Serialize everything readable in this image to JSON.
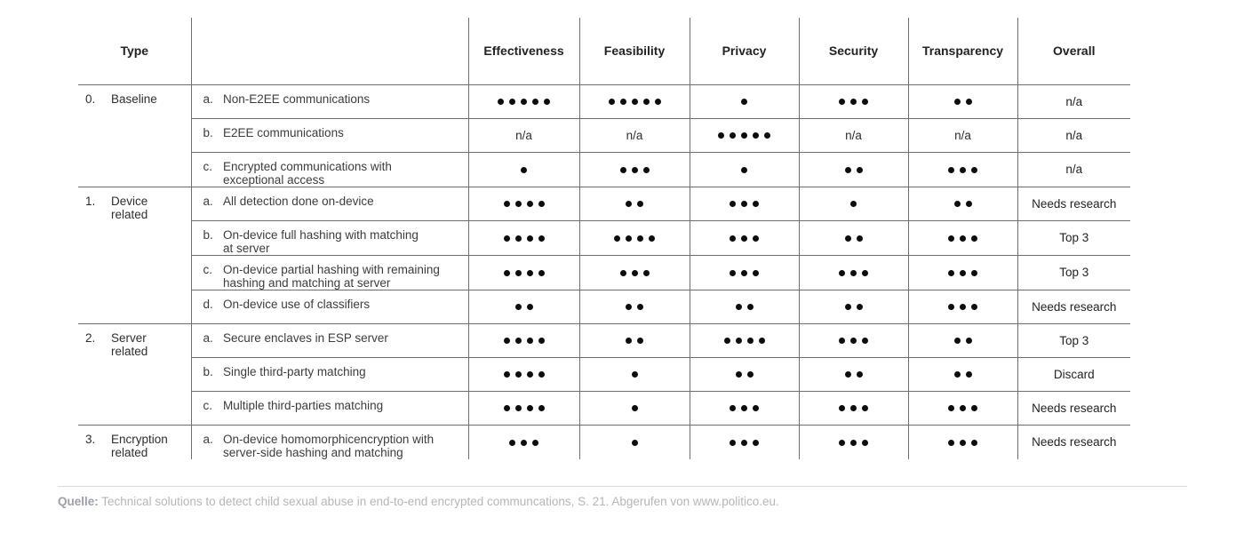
{
  "table": {
    "header": {
      "type": "Type",
      "description": "",
      "cols": [
        "Effectiveness",
        "Feasibility",
        "Privacy",
        "Security",
        "Transparency",
        "Overall"
      ]
    },
    "groups": [
      {
        "num": "0.",
        "name": "Baseline",
        "rows": [
          {
            "letter": "a.",
            "desc": "Non-E2EE communications",
            "ratings": [
              5,
              5,
              1,
              3,
              2
            ],
            "overall": "n/a"
          },
          {
            "letter": "b.",
            "desc": "E2EE communications",
            "ratings": [
              "n/a",
              "n/a",
              5,
              "n/a",
              "n/a"
            ],
            "overall": "n/a"
          },
          {
            "letter": "c.",
            "desc": "Encrypted communications with\nexceptional access",
            "ratings": [
              1,
              3,
              1,
              2,
              3
            ],
            "overall": "n/a"
          }
        ]
      },
      {
        "num": "1.",
        "name": "Device\nrelated",
        "rows": [
          {
            "letter": "a.",
            "desc": "All detection done on-device",
            "ratings": [
              4,
              2,
              3,
              1,
              2
            ],
            "overall": "Needs research"
          },
          {
            "letter": "b.",
            "desc": "On-device full hashing with matching\nat server",
            "ratings": [
              4,
              4,
              3,
              2,
              3
            ],
            "overall": "Top 3"
          },
          {
            "letter": "c.",
            "desc": "On-device partial hashing with remaining\nhashing and matching at server",
            "ratings": [
              4,
              3,
              3,
              3,
              3
            ],
            "overall": "Top 3"
          },
          {
            "letter": "d.",
            "desc": "On-device use of classifiers",
            "ratings": [
              2,
              2,
              2,
              2,
              3
            ],
            "overall": "Needs research"
          }
        ]
      },
      {
        "num": "2.",
        "name": "Server\nrelated",
        "rows": [
          {
            "letter": "a.",
            "desc": "Secure enclaves in ESP server",
            "ratings": [
              4,
              2,
              4,
              3,
              2
            ],
            "overall": "Top 3"
          },
          {
            "letter": "b.",
            "desc": "Single third-party matching",
            "ratings": [
              4,
              1,
              2,
              2,
              2
            ],
            "overall": "Discard"
          },
          {
            "letter": "c.",
            "desc": "Multiple third-parties matching",
            "ratings": [
              4,
              1,
              3,
              3,
              3
            ],
            "overall": "Needs research"
          }
        ]
      },
      {
        "num": "3.",
        "name": "Encryption\nrelated",
        "rows": [
          {
            "letter": "a.",
            "desc": "On-device homomorphicencryption with\nserver-side hashing and matching",
            "ratings": [
              3,
              1,
              3,
              3,
              3
            ],
            "overall": "Needs research"
          }
        ]
      }
    ]
  },
  "footer": {
    "label": "Quelle:",
    "text": "Technical solutions to detect child sexual abuse in end-to-end encrypted communcations, S. 21. Abgerufen von www.politico.eu."
  },
  "colors": {
    "table_line": "#6e6e6e",
    "dot": "#0d0d0d",
    "body_text": "#3c3c3c",
    "header_text": "#222222",
    "source_label": "#9aa1a8",
    "source_text": "#b1b7bd",
    "footer_rule": "#d9d9d9"
  }
}
